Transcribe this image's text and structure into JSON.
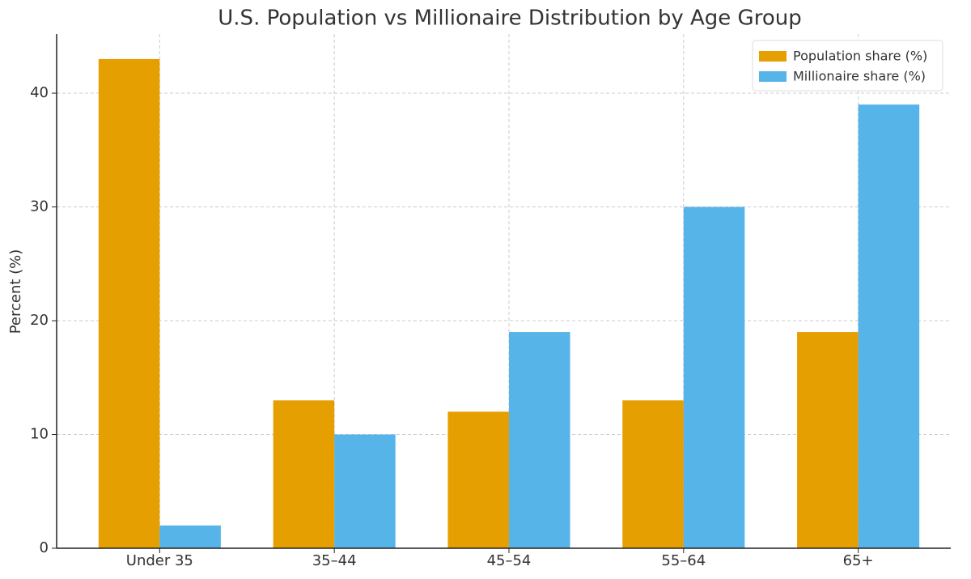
{
  "chart_data": {
    "type": "bar",
    "title": "U.S. Population vs Millionaire Distribution by Age Group",
    "y_label": "Percent (%)",
    "categories": [
      "Under 35",
      "35–44",
      "45–54",
      "55–64",
      "65+"
    ],
    "series": [
      {
        "name": "Population share (%)",
        "color": "#E69F00",
        "values": [
          43,
          13,
          12,
          13,
          19
        ]
      },
      {
        "name": "Millionaire share (%)",
        "color": "#56B4E9",
        "values": [
          2,
          10,
          19,
          30,
          39
        ]
      }
    ],
    "ylim": [
      0,
      45.2
    ],
    "yticks": [
      0,
      10,
      20,
      30,
      40
    ],
    "grid": true,
    "legend": "upper right"
  }
}
